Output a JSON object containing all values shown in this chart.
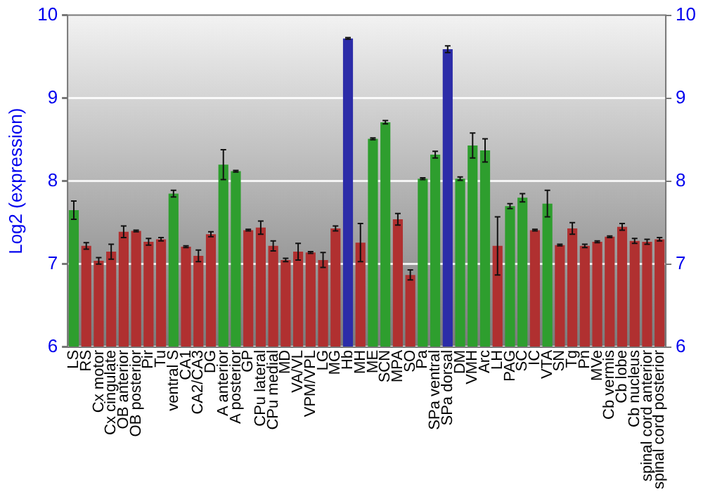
{
  "chart_data": {
    "type": "bar",
    "ylabel": "Log2 (expression)",
    "categories": [
      "LS",
      "RS",
      "Cx motor",
      "Cx cingulate",
      "OB anterior",
      "OB posterior",
      "Pir",
      "Tu",
      "ventral S",
      "CA1",
      "CA2/CA3",
      "DG",
      "A anterior",
      "A posterior",
      "GP",
      "CPu lateral",
      "CPu medial",
      "MD",
      "VA/VL",
      "VPM/VPL",
      "LG",
      "MG",
      "Hb",
      "MH",
      "ME",
      "SCN",
      "MPA",
      "SO",
      "Pa",
      "SPa ventral",
      "SPa dorsal",
      "DM",
      "VMH",
      "Arc",
      "LH",
      "PAG",
      "SC",
      "IC",
      "VTA",
      "SN",
      "Tg",
      "Pn",
      "MVe",
      "Cb vermis",
      "Cb lobe",
      "Cb nucleus",
      "spinal cord anterior",
      "spinal cord posterior"
    ],
    "values": [
      7.65,
      7.22,
      7.04,
      7.15,
      7.39,
      7.4,
      7.27,
      7.3,
      7.85,
      7.21,
      7.1,
      7.36,
      8.2,
      8.12,
      7.41,
      7.44,
      7.22,
      7.05,
      7.15,
      7.14,
      7.05,
      7.43,
      9.72,
      7.26,
      8.51,
      8.71,
      7.54,
      6.87,
      8.03,
      8.32,
      9.59,
      8.03,
      8.43,
      8.37,
      7.22,
      7.7,
      7.8,
      7.41,
      7.73,
      7.23,
      7.43,
      7.22,
      7.27,
      7.33,
      7.45,
      7.28,
      7.27,
      7.3
    ],
    "errors": [
      0.11,
      0.04,
      0.04,
      0.09,
      0.07,
      0.01,
      0.04,
      0.02,
      0.04,
      0.01,
      0.07,
      0.03,
      0.18,
      0.01,
      0.01,
      0.08,
      0.06,
      0.02,
      0.1,
      0.01,
      0.09,
      0.03,
      0.01,
      0.23,
      0.01,
      0.02,
      0.07,
      0.06,
      0.01,
      0.04,
      0.04,
      0.02,
      0.15,
      0.14,
      0.35,
      0.03,
      0.05,
      0.01,
      0.16,
      0.01,
      0.07,
      0.02,
      0.01,
      0.01,
      0.04,
      0.03,
      0.03,
      0.02
    ],
    "colors": [
      "#2e9e2e",
      "#b03030",
      "#b03030",
      "#b03030",
      "#b03030",
      "#b03030",
      "#b03030",
      "#b03030",
      "#2e9e2e",
      "#b03030",
      "#b03030",
      "#b03030",
      "#2e9e2e",
      "#2e9e2e",
      "#b03030",
      "#b03030",
      "#b03030",
      "#b03030",
      "#b03030",
      "#b03030",
      "#b03030",
      "#b03030",
      "#2c2ca8",
      "#b03030",
      "#2e9e2e",
      "#2e9e2e",
      "#b03030",
      "#b03030",
      "#2e9e2e",
      "#2e9e2e",
      "#2c2ca8",
      "#2e9e2e",
      "#2e9e2e",
      "#2e9e2e",
      "#b03030",
      "#2e9e2e",
      "#2e9e2e",
      "#b03030",
      "#2e9e2e",
      "#b03030",
      "#b03030",
      "#b03030",
      "#b03030",
      "#b03030",
      "#b03030",
      "#b03030",
      "#b03030",
      "#b03030"
    ],
    "ylim": [
      6,
      10
    ],
    "yticks": [
      6,
      7,
      8,
      9,
      10
    ],
    "y2lim": [
      6,
      10
    ],
    "y2ticks": [
      6,
      7,
      8,
      9,
      10
    ],
    "grid": "y",
    "legend": false
  }
}
